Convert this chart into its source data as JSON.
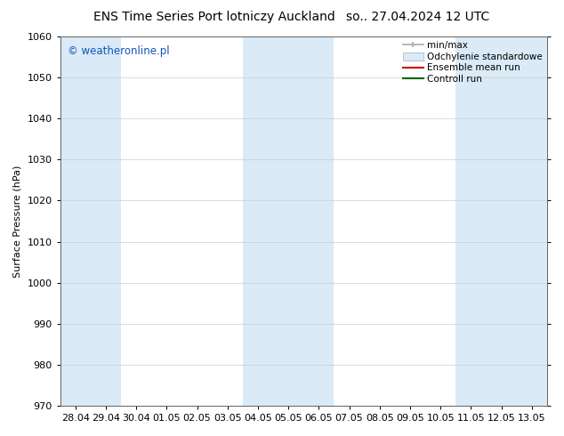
{
  "title_left": "ENS Time Series Port lotniczy Auckland",
  "title_right": "so.. 27.04.2024 12 UTC",
  "ylabel": "Surface Pressure (hPa)",
  "ylim": [
    970,
    1060
  ],
  "yticks": [
    970,
    980,
    990,
    1000,
    1010,
    1020,
    1030,
    1040,
    1050,
    1060
  ],
  "xtick_labels": [
    "28.04",
    "29.04",
    "30.04",
    "01.05",
    "02.05",
    "03.05",
    "04.05",
    "05.05",
    "06.05",
    "07.05",
    "08.05",
    "09.05",
    "10.05",
    "11.05",
    "12.05",
    "13.05"
  ],
  "watermark": "© weatheronline.pl",
  "watermark_color": "#1155bb",
  "bg_color": "#ffffff",
  "plot_bg_color": "#ffffff",
  "shaded_band_color": "#daeaf7",
  "shaded_columns": [
    0,
    1,
    6,
    7,
    8,
    13,
    14,
    15
  ],
  "minmax_color": "#aaaaaa",
  "std_face_color": "#daeaf7",
  "std_edge_color": "#aabbcc",
  "ensemble_color": "#cc0000",
  "control_color": "#006600",
  "title_fontsize": 10,
  "axis_fontsize": 8,
  "tick_fontsize": 8,
  "legend_fontsize": 7.5
}
